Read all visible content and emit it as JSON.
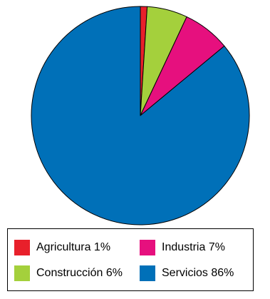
{
  "chart_data": {
    "type": "pie",
    "slices": [
      {
        "label": "Agricultura",
        "value": 1,
        "value_label": "1%",
        "color": "#e8202b"
      },
      {
        "label": "Construcción",
        "value": 6,
        "value_label": "6%",
        "color": "#a4d03c"
      },
      {
        "label": "Industria",
        "value": 7,
        "value_label": "7%",
        "color": "#e6107e"
      },
      {
        "label": "Servicios",
        "value": 86,
        "value_label": "86%",
        "color": "#0070b8"
      }
    ],
    "legend_placement": "bottom",
    "legend": [
      {
        "text": "Agricultura 1%",
        "color": "#e8202b"
      },
      {
        "text": "Industria 7%",
        "color": "#e6107e"
      },
      {
        "text": "Construcción 6%",
        "color": "#a4d03c"
      },
      {
        "text": "Servicios 86%",
        "color": "#0070b8"
      }
    ]
  }
}
